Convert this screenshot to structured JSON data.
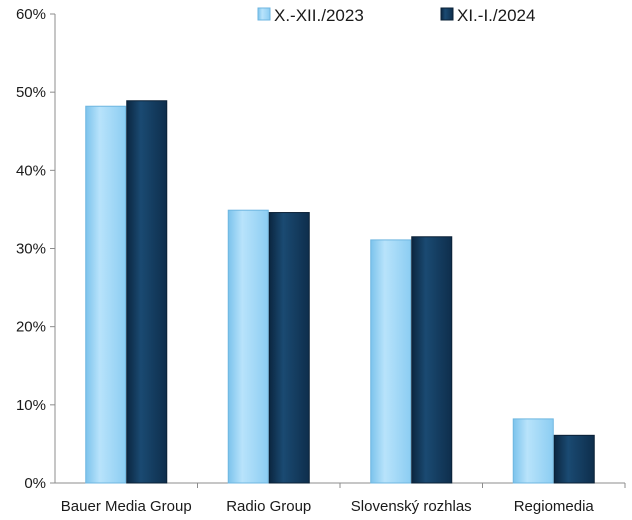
{
  "chart_data": {
    "type": "bar",
    "title": "",
    "xlabel": "",
    "ylabel": "",
    "categories": [
      "Bauer Media Group",
      "Radio Group",
      "Slovenský rozhlas",
      "Regiomedia"
    ],
    "series": [
      {
        "name": "X.-XII./2023",
        "values": [
          48.2,
          34.9,
          31.1,
          8.2
        ],
        "color": "#9fd6f7"
      },
      {
        "name": "XI.-I./2024",
        "values": [
          48.9,
          34.6,
          31.5,
          6.1
        ],
        "color": "#113657"
      }
    ],
    "ylim": [
      0,
      60
    ],
    "yticks": [
      {
        "value": 0,
        "label": "0%"
      },
      {
        "value": 10,
        "label": "10%"
      },
      {
        "value": 20,
        "label": "20%"
      },
      {
        "value": 30,
        "label": "30%"
      },
      {
        "value": 40,
        "label": "40%"
      },
      {
        "value": 50,
        "label": "50%"
      },
      {
        "value": 60,
        "label": "60%"
      }
    ],
    "grid": false,
    "legend_position": "top-right"
  }
}
